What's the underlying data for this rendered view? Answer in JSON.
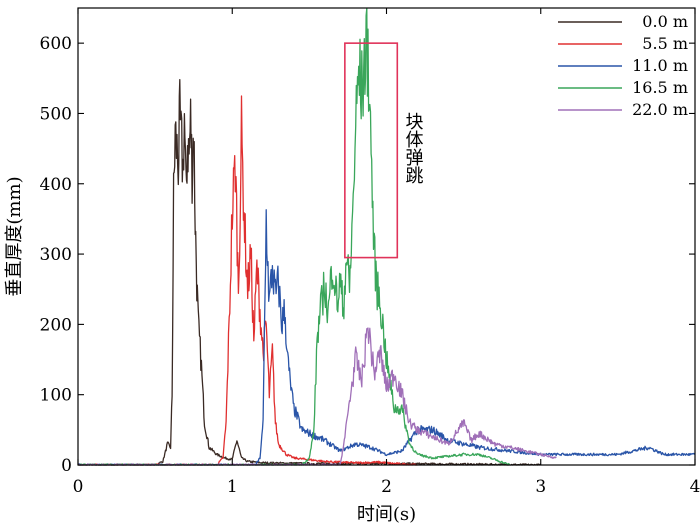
{
  "chart_data": {
    "type": "line",
    "title": "",
    "xlabel": "时间(s)",
    "ylabel": "垂直厚度(mm)",
    "xlim": [
      0,
      4
    ],
    "ylim": [
      0,
      650
    ],
    "xticks": [
      "0",
      "1",
      "2",
      "3",
      "4"
    ],
    "yticks": [
      "0",
      "100",
      "200",
      "300",
      "400",
      "500",
      "600"
    ],
    "grid": false,
    "legend_position": "top-right",
    "annotation": {
      "text": "块体弹跳",
      "box_x": [
        1.73,
        2.07
      ],
      "box_y": [
        295,
        600
      ]
    },
    "series": [
      {
        "name": "0.0 m",
        "color": "#3a2a24",
        "x": [
          0,
          0.5,
          0.55,
          0.58,
          0.6,
          0.61,
          0.62,
          0.63,
          0.65,
          0.66,
          0.68,
          0.69,
          0.7,
          0.71,
          0.72,
          0.73,
          0.74,
          0.75,
          0.76,
          0.77,
          0.78,
          0.8,
          0.82,
          0.85,
          0.9,
          0.95,
          1.0,
          1.03,
          1.06,
          1.1,
          1.2,
          1.5,
          2.0,
          3.0
        ],
        "y": [
          0,
          0,
          5,
          30,
          25,
          100,
          380,
          470,
          430,
          490,
          420,
          500,
          380,
          460,
          440,
          490,
          420,
          480,
          350,
          260,
          200,
          140,
          60,
          25,
          15,
          10,
          8,
          35,
          10,
          5,
          3,
          2,
          2,
          0
        ]
      },
      {
        "name": "5.5 m",
        "color": "#e03030",
        "x": [
          0,
          0.9,
          0.94,
          0.96,
          0.98,
          1.0,
          1.02,
          1.04,
          1.06,
          1.08,
          1.1,
          1.12,
          1.14,
          1.16,
          1.18,
          1.2,
          1.22,
          1.24,
          1.26,
          1.28,
          1.3,
          1.35,
          1.4,
          1.6,
          1.8,
          1.95,
          2.05,
          2.2
        ],
        "y": [
          0,
          0,
          10,
          60,
          200,
          360,
          430,
          250,
          470,
          340,
          250,
          300,
          180,
          280,
          220,
          160,
          200,
          100,
          160,
          60,
          30,
          15,
          10,
          5,
          3,
          4,
          2,
          0
        ]
      },
      {
        "name": "11.0 m",
        "color": "#2a55a8",
        "x": [
          0,
          1.15,
          1.18,
          1.2,
          1.22,
          1.24,
          1.26,
          1.28,
          1.3,
          1.32,
          1.34,
          1.36,
          1.38,
          1.4,
          1.42,
          1.45,
          1.5,
          1.6,
          1.7,
          1.8,
          1.9,
          2.0,
          2.1,
          2.2,
          2.3,
          2.4,
          2.6,
          2.8,
          3.0,
          3.2,
          3.5,
          3.7,
          3.8,
          3.9,
          4.0
        ],
        "y": [
          0,
          0,
          10,
          60,
          350,
          230,
          280,
          240,
          260,
          200,
          220,
          150,
          110,
          80,
          70,
          50,
          45,
          35,
          20,
          30,
          25,
          15,
          20,
          50,
          50,
          35,
          25,
          20,
          15,
          15,
          15,
          25,
          15,
          15,
          15
        ]
      },
      {
        "name": "16.5 m",
        "color": "#3aa65a",
        "x": [
          0,
          1.45,
          1.5,
          1.53,
          1.55,
          1.58,
          1.6,
          1.62,
          1.65,
          1.68,
          1.7,
          1.72,
          1.74,
          1.76,
          1.78,
          1.8,
          1.82,
          1.84,
          1.86,
          1.88,
          1.9,
          1.92,
          1.94,
          1.96,
          2.0,
          2.05,
          2.1,
          2.15,
          2.2,
          2.3,
          2.5,
          2.6,
          2.7,
          2.8
        ],
        "y": [
          0,
          0,
          10,
          50,
          180,
          230,
          260,
          210,
          290,
          230,
          260,
          220,
          300,
          250,
          350,
          480,
          560,
          530,
          580,
          590,
          450,
          300,
          250,
          230,
          150,
          80,
          80,
          30,
          15,
          10,
          15,
          15,
          8,
          0
        ]
      },
      {
        "name": "22.0 m",
        "color": "#a070b8",
        "x": [
          0,
          1.7,
          1.73,
          1.76,
          1.8,
          1.84,
          1.88,
          1.92,
          1.96,
          2.0,
          2.05,
          2.1,
          2.15,
          2.2,
          2.3,
          2.4,
          2.5,
          2.55,
          2.6,
          2.7,
          2.8,
          2.9,
          3.0,
          3.1
        ],
        "y": [
          0,
          0,
          40,
          90,
          150,
          120,
          200,
          130,
          160,
          110,
          130,
          100,
          60,
          50,
          40,
          30,
          60,
          35,
          45,
          30,
          25,
          20,
          15,
          10
        ]
      }
    ]
  }
}
